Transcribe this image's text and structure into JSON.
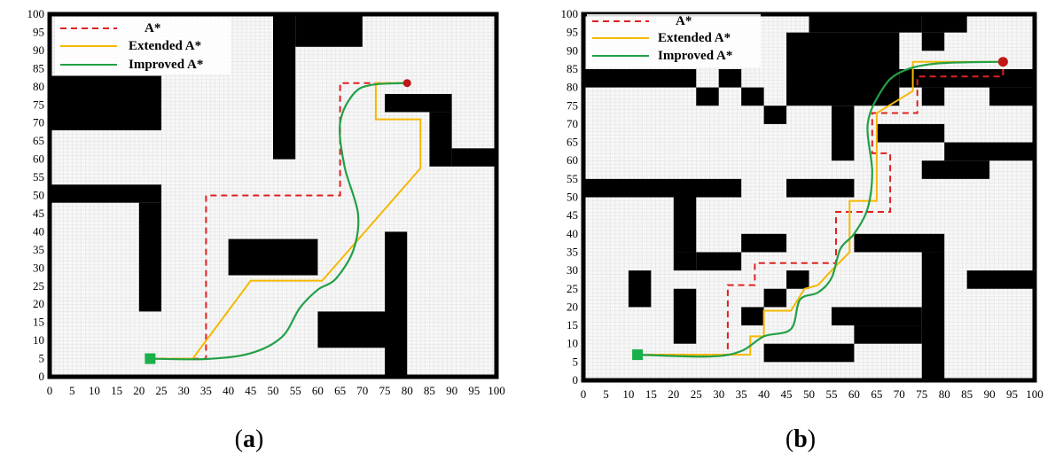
{
  "colors": {
    "a_star": "#e02020",
    "extended_a_star": "#f5b800",
    "improved_a_star": "#22a045",
    "obstacle": "#000000",
    "grid": "#c9c9c9",
    "free": "#f7f7f7",
    "start": "#18b04a",
    "goal": "#c01818"
  },
  "panels": [
    {
      "caption_open": "(",
      "caption_letter": "a",
      "caption_close": ")",
      "legend": [
        "A*",
        "Extended A*",
        "Improved A*"
      ],
      "ticks": [
        "0",
        "5",
        "10",
        "15",
        "20",
        "25",
        "30",
        "35",
        "40",
        "45",
        "50",
        "55",
        "60",
        "65",
        "70",
        "75",
        "80",
        "85",
        "90",
        "95",
        "100"
      ],
      "start": [
        22.5,
        5
      ],
      "goal": [
        80,
        81
      ],
      "obstacles": [
        [
          0,
          68,
          25,
          83
        ],
        [
          0,
          48,
          25,
          53
        ],
        [
          20,
          18,
          25,
          48
        ],
        [
          50,
          60,
          55,
          100
        ],
        [
          55,
          91,
          70,
          100
        ],
        [
          40,
          28,
          60,
          38
        ],
        [
          75,
          0,
          80,
          40
        ],
        [
          60,
          8,
          75,
          18
        ],
        [
          75,
          73,
          90,
          78
        ],
        [
          85,
          58,
          90,
          73
        ],
        [
          90,
          58,
          100,
          63
        ]
      ],
      "paths": {
        "a_star": [
          [
            22.5,
            5
          ],
          [
            35,
            5
          ],
          [
            35,
            50
          ],
          [
            65,
            50
          ],
          [
            65,
            81
          ],
          [
            80,
            81
          ]
        ],
        "extended_a_star": [
          [
            22.5,
            5
          ],
          [
            32,
            5
          ],
          [
            45,
            26.5
          ],
          [
            61,
            26.5
          ],
          [
            83,
            57.5
          ],
          [
            83,
            71
          ],
          [
            73,
            71
          ],
          [
            73,
            81
          ],
          [
            80,
            81
          ]
        ],
        "improved_a_star": [
          [
            22.5,
            5
          ],
          [
            35,
            4.9
          ],
          [
            45,
            6.5
          ],
          [
            52,
            11
          ],
          [
            56,
            19
          ],
          [
            60,
            24
          ],
          [
            64,
            27
          ],
          [
            68,
            35
          ],
          [
            69,
            45
          ],
          [
            66,
            58
          ],
          [
            65,
            70
          ],
          [
            68,
            78
          ],
          [
            72,
            80.5
          ],
          [
            80,
            81
          ]
        ]
      }
    },
    {
      "caption_open": "(",
      "caption_letter": "b",
      "caption_close": ")",
      "legend": [
        "A*",
        "Extended A*",
        "Improved A*"
      ],
      "ticks": [
        "0",
        "5",
        "10",
        "15",
        "20",
        "25",
        "30",
        "35",
        "40",
        "45",
        "50",
        "55",
        "60",
        "65",
        "70",
        "75",
        "80",
        "85",
        "90",
        "95",
        "100"
      ],
      "start": [
        12,
        7
      ],
      "goal": [
        93,
        87
      ],
      "obstacles": [
        [
          0,
          80,
          25,
          85
        ],
        [
          25,
          75,
          30,
          80
        ],
        [
          30,
          80,
          35,
          85
        ],
        [
          35,
          75,
          40,
          80
        ],
        [
          40,
          70,
          45,
          75
        ],
        [
          45,
          75,
          70,
          95
        ],
        [
          50,
          95,
          75,
          100
        ],
        [
          55,
          60,
          60,
          75
        ],
        [
          75,
          95,
          85,
          100
        ],
        [
          75,
          90,
          80,
          95
        ],
        [
          70,
          80,
          100,
          85
        ],
        [
          75,
          75,
          80,
          80
        ],
        [
          90,
          75,
          100,
          80
        ],
        [
          65,
          65,
          80,
          70
        ],
        [
          80,
          60,
          100,
          65
        ],
        [
          75,
          55,
          90,
          60
        ],
        [
          0,
          50,
          35,
          55
        ],
        [
          45,
          50,
          60,
          55
        ],
        [
          20,
          35,
          25,
          50
        ],
        [
          20,
          30,
          25,
          35
        ],
        [
          25,
          30,
          35,
          35
        ],
        [
          35,
          35,
          45,
          40
        ],
        [
          60,
          35,
          80,
          40
        ],
        [
          75,
          0,
          80,
          35
        ],
        [
          10,
          20,
          15,
          30
        ],
        [
          20,
          10,
          25,
          25
        ],
        [
          45,
          25,
          50,
          30
        ],
        [
          40,
          20,
          45,
          25
        ],
        [
          35,
          15,
          40,
          20
        ],
        [
          55,
          15,
          75,
          20
        ],
        [
          60,
          10,
          75,
          15
        ],
        [
          40,
          5,
          60,
          10
        ],
        [
          85,
          25,
          100,
          30
        ]
      ],
      "paths": {
        "a_star": [
          [
            12,
            7
          ],
          [
            32,
            7
          ],
          [
            32,
            26
          ],
          [
            38,
            26
          ],
          [
            38,
            32
          ],
          [
            56,
            32
          ],
          [
            56,
            46
          ],
          [
            68,
            46
          ],
          [
            68,
            62
          ],
          [
            64,
            62
          ],
          [
            64,
            73
          ],
          [
            74,
            73
          ],
          [
            74,
            83
          ],
          [
            93,
            83
          ],
          [
            93,
            87
          ]
        ],
        "extended_a_star": [
          [
            12,
            7
          ],
          [
            37,
            7
          ],
          [
            37,
            12
          ],
          [
            40,
            12
          ],
          [
            40,
            19
          ],
          [
            46,
            19
          ],
          [
            49,
            25
          ],
          [
            52,
            26
          ],
          [
            55,
            30
          ],
          [
            59,
            35
          ],
          [
            59,
            49
          ],
          [
            65,
            49
          ],
          [
            65,
            73
          ],
          [
            73,
            79
          ],
          [
            73,
            87
          ],
          [
            93,
            87
          ]
        ],
        "improved_a_star": [
          [
            12,
            7
          ],
          [
            28,
            6.5
          ],
          [
            35,
            8
          ],
          [
            40,
            12
          ],
          [
            46,
            14
          ],
          [
            48,
            22
          ],
          [
            52,
            24
          ],
          [
            55,
            28
          ],
          [
            57,
            36
          ],
          [
            60,
            40
          ],
          [
            63,
            47
          ],
          [
            64,
            57
          ],
          [
            63,
            70
          ],
          [
            66,
            79
          ],
          [
            70,
            84
          ],
          [
            78,
            86.5
          ],
          [
            93,
            87
          ]
        ]
      }
    }
  ]
}
